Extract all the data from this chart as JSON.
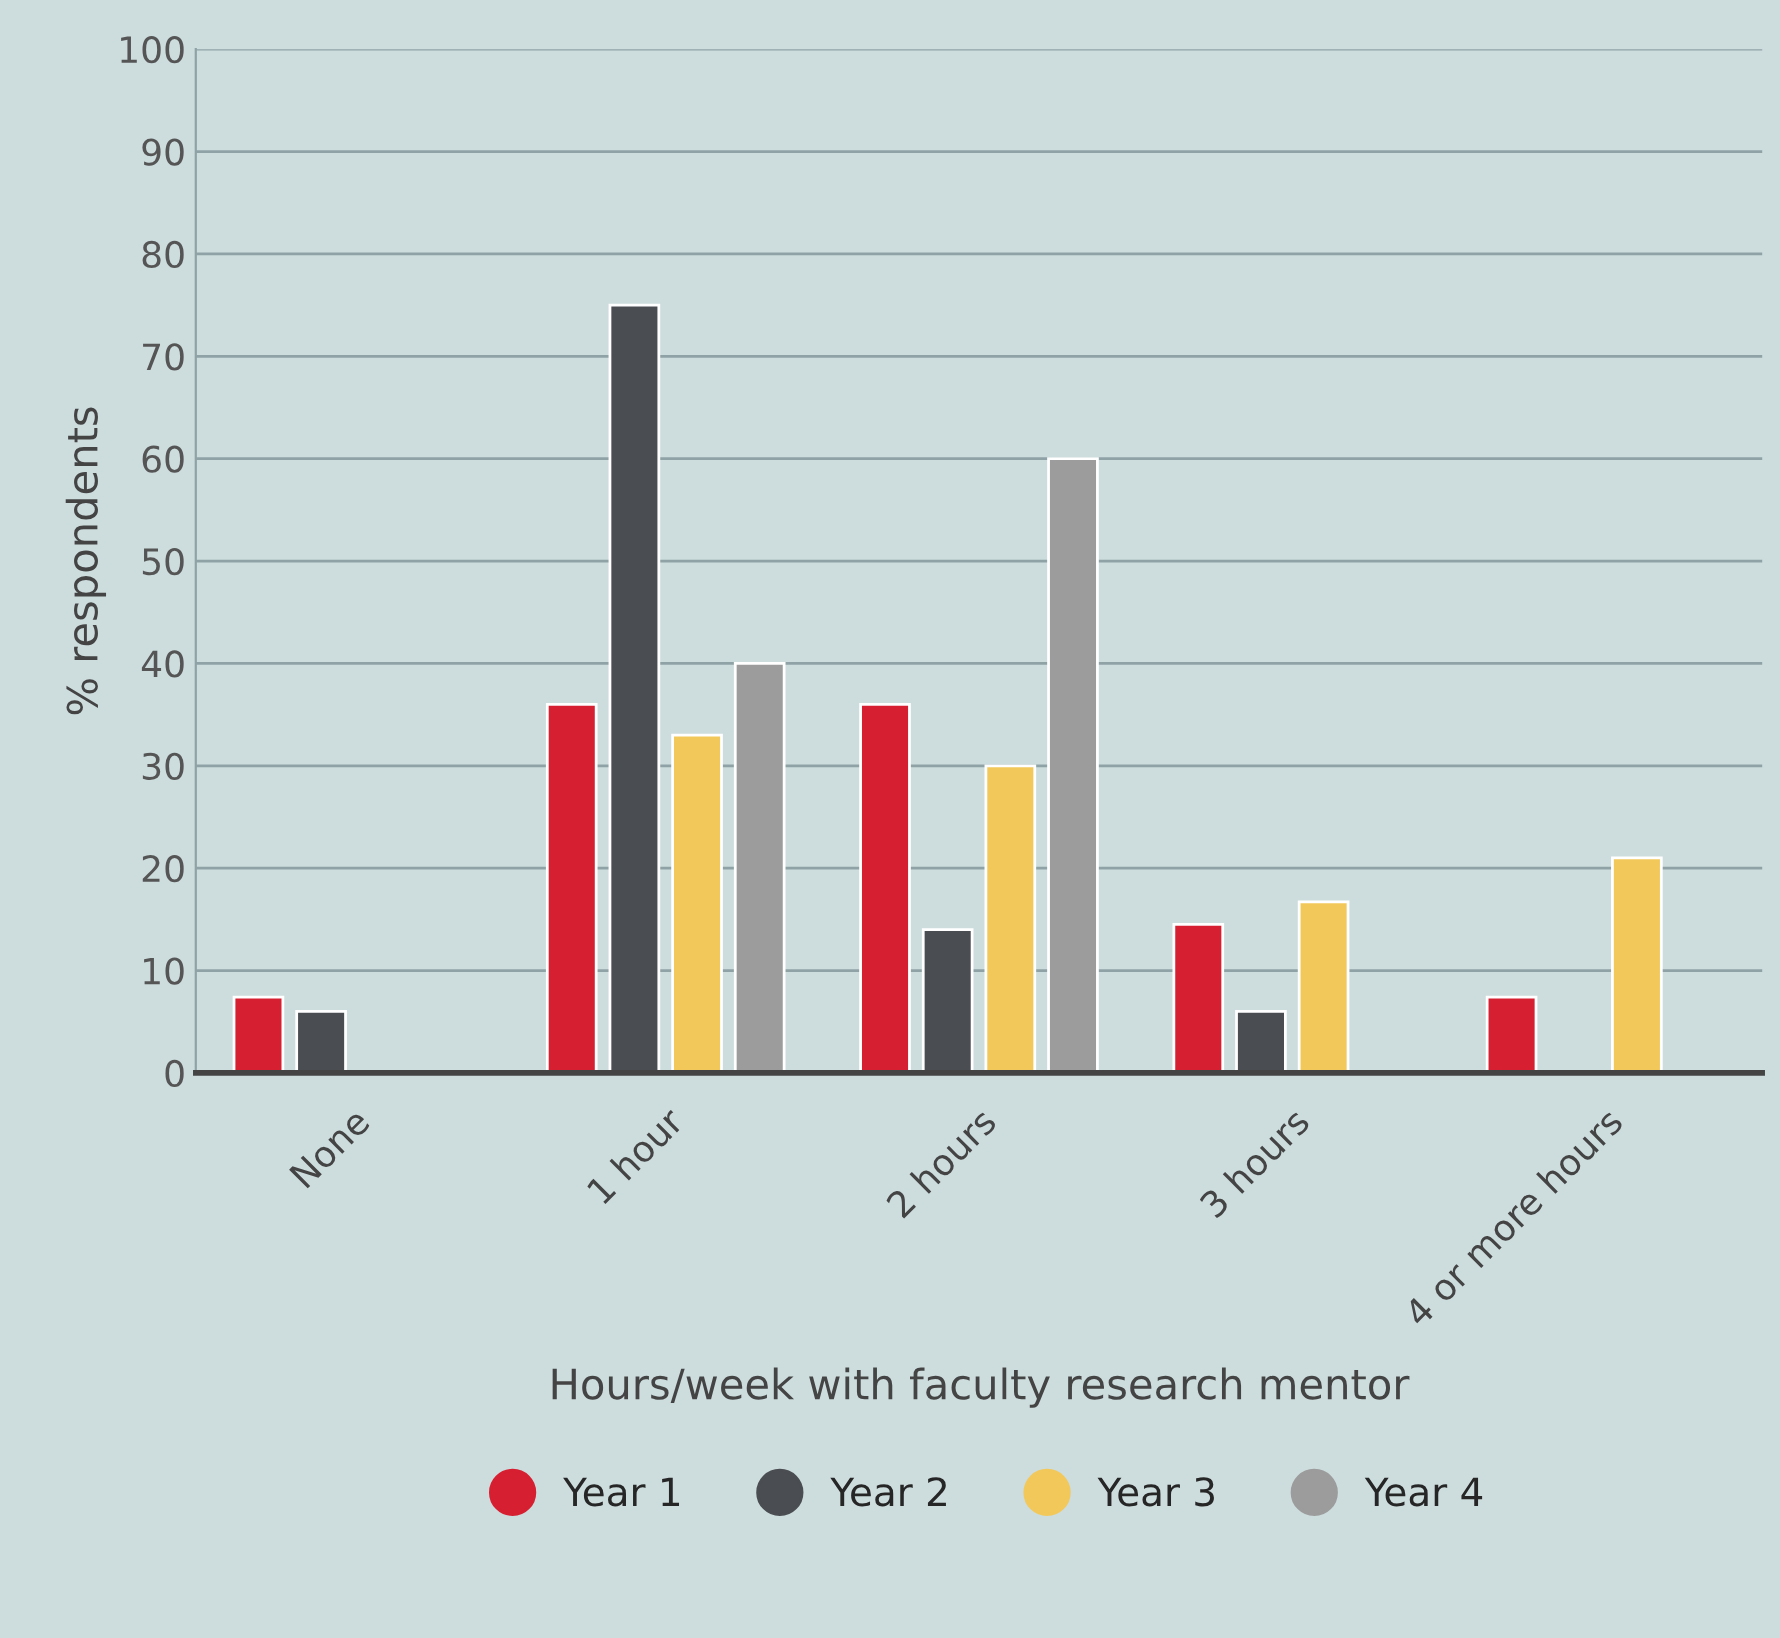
{
  "chart_data": {
    "type": "bar",
    "xlabel": "Hours/week with faculty research mentor",
    "ylabel": "% respondents",
    "categories": [
      "None",
      "1 hour",
      "2 hours",
      "3 hours",
      "4 or more hours"
    ],
    "series": [
      {
        "name": "Year 1",
        "color": "#d61f31",
        "values": [
          7.4,
          36,
          36,
          14.5,
          7.4
        ]
      },
      {
        "name": "Year 2",
        "color": "#4a4d52",
        "values": [
          6,
          75,
          14,
          6,
          null
        ]
      },
      {
        "name": "Year 3",
        "color": "#f2c85b",
        "values": [
          null,
          33,
          30,
          16.7,
          21
        ]
      },
      {
        "name": "Year 4",
        "color": "#9c9c9c",
        "values": [
          null,
          40,
          60,
          null,
          null
        ]
      }
    ],
    "ylim": [
      0,
      100
    ],
    "yticks": [
      0,
      10,
      20,
      30,
      40,
      50,
      60,
      70,
      80,
      90,
      100
    ],
    "grid": "y",
    "legend": "bottom"
  }
}
